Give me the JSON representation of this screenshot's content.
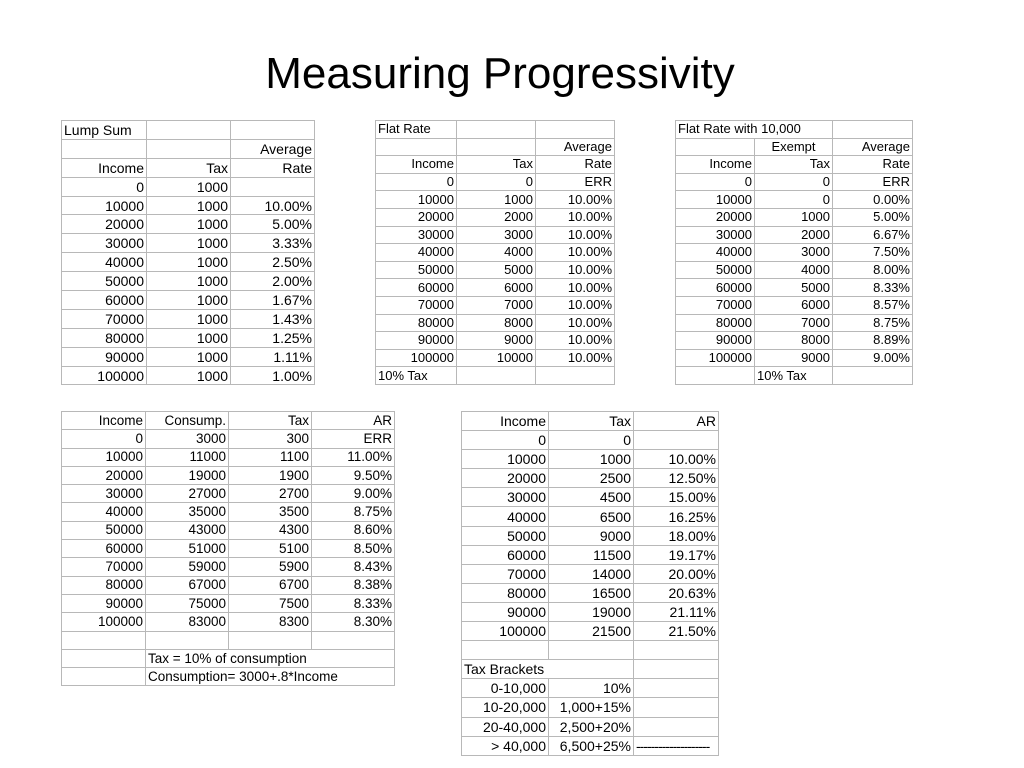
{
  "title": "Measuring Progressivity",
  "lump_sum": {
    "label": "Lump Sum",
    "header_top": "Average",
    "headers": [
      "Income",
      "Tax",
      "Rate"
    ],
    "rows": [
      [
        "0",
        "1000",
        ""
      ],
      [
        "10000",
        "1000",
        "10.00%"
      ],
      [
        "20000",
        "1000",
        "5.00%"
      ],
      [
        "30000",
        "1000",
        "3.33%"
      ],
      [
        "40000",
        "1000",
        "2.50%"
      ],
      [
        "50000",
        "1000",
        "2.00%"
      ],
      [
        "60000",
        "1000",
        "1.67%"
      ],
      [
        "70000",
        "1000",
        "1.43%"
      ],
      [
        "80000",
        "1000",
        "1.25%"
      ],
      [
        "90000",
        "1000",
        "1.11%"
      ],
      [
        "100000",
        "1000",
        "1.00%"
      ]
    ]
  },
  "flat_rate": {
    "label": "Flat Rate",
    "header_top": "Average",
    "headers": [
      "Income",
      "Tax",
      "Rate"
    ],
    "rows": [
      [
        "0",
        "0",
        "ERR"
      ],
      [
        "10000",
        "1000",
        "10.00%"
      ],
      [
        "20000",
        "2000",
        "10.00%"
      ],
      [
        "30000",
        "3000",
        "10.00%"
      ],
      [
        "40000",
        "4000",
        "10.00%"
      ],
      [
        "50000",
        "5000",
        "10.00%"
      ],
      [
        "60000",
        "6000",
        "10.00%"
      ],
      [
        "70000",
        "7000",
        "10.00%"
      ],
      [
        "80000",
        "8000",
        "10.00%"
      ],
      [
        "90000",
        "9000",
        "10.00%"
      ],
      [
        "100000",
        "10000",
        "10.00%"
      ]
    ],
    "footer": "10% Tax"
  },
  "flat_rate_exempt": {
    "label": "Flat Rate with 10,000",
    "header_top_mid": "Exempt",
    "header_top": "Average",
    "headers": [
      "Income",
      "Tax",
      "Rate"
    ],
    "rows": [
      [
        "0",
        "0",
        "ERR"
      ],
      [
        "10000",
        "0",
        "0.00%"
      ],
      [
        "20000",
        "1000",
        "5.00%"
      ],
      [
        "30000",
        "2000",
        "6.67%"
      ],
      [
        "40000",
        "3000",
        "7.50%"
      ],
      [
        "50000",
        "4000",
        "8.00%"
      ],
      [
        "60000",
        "5000",
        "8.33%"
      ],
      [
        "70000",
        "6000",
        "8.57%"
      ],
      [
        "80000",
        "7000",
        "8.75%"
      ],
      [
        "90000",
        "8000",
        "8.89%"
      ],
      [
        "100000",
        "9000",
        "9.00%"
      ]
    ],
    "footer": "10% Tax"
  },
  "consumption": {
    "headers": [
      "Income",
      "Consump.",
      "Tax",
      "AR"
    ],
    "rows": [
      [
        "0",
        "3000",
        "300",
        "ERR"
      ],
      [
        "10000",
        "11000",
        "1100",
        "11.00%"
      ],
      [
        "20000",
        "19000",
        "1900",
        "9.50%"
      ],
      [
        "30000",
        "27000",
        "2700",
        "9.00%"
      ],
      [
        "40000",
        "35000",
        "3500",
        "8.75%"
      ],
      [
        "50000",
        "43000",
        "4300",
        "8.60%"
      ],
      [
        "60000",
        "51000",
        "5100",
        "8.50%"
      ],
      [
        "70000",
        "59000",
        "5900",
        "8.43%"
      ],
      [
        "80000",
        "67000",
        "6700",
        "8.38%"
      ],
      [
        "90000",
        "75000",
        "7500",
        "8.33%"
      ],
      [
        "100000",
        "83000",
        "8300",
        "8.30%"
      ]
    ],
    "note1": "Tax = 10% of consumption",
    "note2": "Consumption= 3000+.8*Income"
  },
  "brackets": {
    "headers": [
      "Income",
      "Tax",
      "AR"
    ],
    "rows": [
      [
        "0",
        "0",
        ""
      ],
      [
        "10000",
        "1000",
        "10.00%"
      ],
      [
        "20000",
        "2500",
        "12.50%"
      ],
      [
        "30000",
        "4500",
        "15.00%"
      ],
      [
        "40000",
        "6500",
        "16.25%"
      ],
      [
        "50000",
        "9000",
        "18.00%"
      ],
      [
        "60000",
        "11500",
        "19.17%"
      ],
      [
        "70000",
        "14000",
        "20.00%"
      ],
      [
        "80000",
        "16500",
        "20.63%"
      ],
      [
        "90000",
        "19000",
        "21.11%"
      ],
      [
        "100000",
        "21500",
        "21.50%"
      ]
    ],
    "brackets_label": "Tax Brackets",
    "bracket_rows": [
      [
        "0-10,000",
        "10%",
        ""
      ],
      [
        "10-20,000",
        "1,000+15%",
        ""
      ],
      [
        "20-40,000",
        "2,500+20%",
        ""
      ],
      [
        "> 40,000",
        "6,500+25%",
        "--------------------"
      ]
    ]
  }
}
